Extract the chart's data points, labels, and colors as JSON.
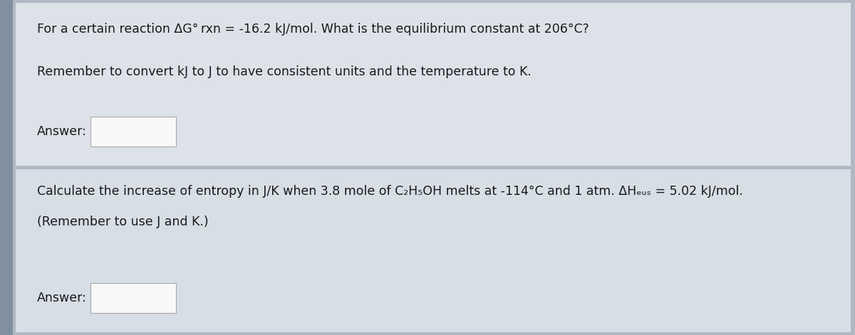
{
  "bg_color": "#b0b8c4",
  "panel1_bg": "#dde2e8",
  "panel2_bg": "#d8dee6",
  "left_strip_color": "#8090a0",
  "text_color": "#1a1a1a",
  "box_fill": "#f8f8f8",
  "box_border": "#aaaaaa",
  "divider_color": "#9aa0aa",
  "line1_q": "For a certain reaction ΔG° rxn = -16.2 kJ/mol. What is the equilibrium constant at 206°C?",
  "line1_hint": "Remember to convert kJ to J to have consistent units and the temperature to K.",
  "line1_answer": "Answer:",
  "line2_q1": "Calculate the increase of entropy in J/K when 3.8 mole of C₂H₅OH melts at -114°C and 1 atm. ΔHₑᵤₛ = 5.02 kJ/mol.",
  "line2_q2": "(Remember to use J and K.)",
  "line2_answer": "Answer:",
  "font_size_main": 12.5,
  "font_size_answer": 12.5
}
